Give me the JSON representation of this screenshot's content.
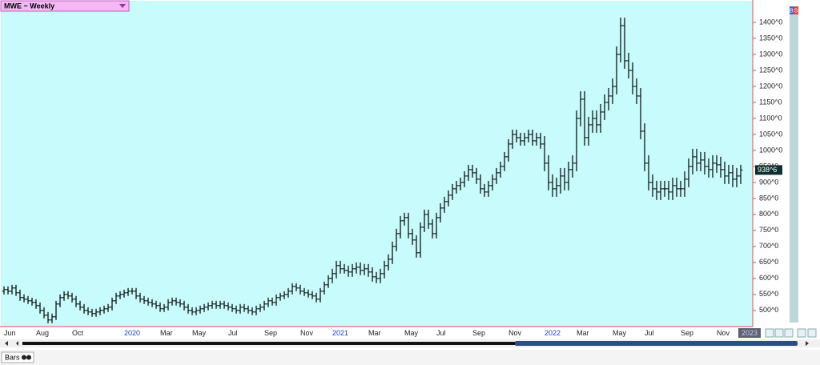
{
  "chart_data": {
    "type": "ohlc",
    "title": "MWE ~ Weekly",
    "color": "#000000",
    "categories": [
      "Jun",
      null,
      null,
      null,
      null,
      null,
      null,
      null,
      "Aug",
      null,
      null,
      null,
      null,
      null,
      null,
      null,
      null,
      "Oct",
      null,
      null,
      null,
      null,
      null,
      null,
      null,
      null,
      null,
      null,
      null,
      null,
      "2020",
      null,
      null,
      null,
      null,
      null,
      null,
      null,
      null,
      "Mar",
      null,
      null,
      null,
      null,
      null,
      null,
      null,
      "May",
      null,
      null,
      null,
      null,
      null,
      null,
      null,
      null,
      "Jul",
      null,
      null,
      null,
      null,
      null,
      null,
      null,
      null,
      "Sep",
      null,
      null,
      null,
      null,
      null,
      null,
      null,
      null,
      "Nov",
      null,
      null,
      null,
      null,
      null,
      null,
      null,
      "2021",
      null,
      null,
      null,
      null,
      null,
      null,
      null,
      null,
      "Mar",
      null,
      null,
      null,
      null,
      null,
      null,
      null,
      null,
      "May",
      null,
      null,
      null,
      null,
      null,
      null,
      null,
      "Jul",
      null,
      null,
      null,
      null,
      null,
      null,
      null,
      null,
      "Sep",
      null,
      null,
      null,
      null,
      null,
      null,
      null,
      null,
      "Nov",
      null,
      null,
      null,
      null,
      null,
      null,
      null,
      null,
      "2022",
      null,
      null,
      null,
      null,
      null,
      null,
      null,
      "Mar",
      null,
      null,
      null,
      null,
      null,
      null,
      null,
      null,
      "May",
      null,
      null,
      null,
      null,
      null,
      null,
      null,
      "Jul",
      null,
      null,
      null,
      null,
      null,
      null,
      null,
      null,
      "Sep",
      null,
      null,
      null,
      null,
      null,
      null,
      null,
      null,
      "Nov",
      null,
      null,
      null,
      null,
      null,
      null
    ],
    "open": [
      560,
      565,
      560,
      570,
      555,
      540,
      535,
      530,
      525,
      515,
      500,
      485,
      470,
      480,
      520,
      540,
      550,
      545,
      535,
      520,
      510,
      500,
      495,
      490,
      495,
      500,
      505,
      510,
      530,
      545,
      550,
      555,
      560,
      560,
      545,
      535,
      530,
      525,
      520,
      515,
      505,
      510,
      525,
      530,
      525,
      520,
      510,
      500,
      495,
      500,
      505,
      510,
      515,
      520,
      515,
      520,
      515,
      510,
      505,
      500,
      510,
      505,
      500,
      495,
      505,
      510,
      520,
      530,
      525,
      540,
      545,
      550,
      560,
      575,
      570,
      560,
      555,
      550,
      545,
      535,
      560,
      580,
      600,
      615,
      640,
      630,
      625,
      620,
      630,
      635,
      625,
      630,
      620,
      605,
      600,
      615,
      640,
      660,
      700,
      740,
      780,
      790,
      740,
      720,
      680,
      760,
      800,
      770,
      740,
      790,
      820,
      840,
      860,
      880,
      890,
      900,
      920,
      940,
      930,
      910,
      880,
      870,
      890,
      910,
      930,
      950,
      980,
      1020,
      1050,
      1040,
      1030,
      1040,
      1050,
      1030,
      1040,
      1020,
      960,
      900,
      880,
      890,
      920,
      900,
      940,
      960,
      1100,
      1160,
      1040,
      1080,
      1100,
      1080,
      1120,
      1150,
      1170,
      1200,
      1300,
      1390,
      1280,
      1250,
      1200,
      1170,
      1060,
      960,
      900,
      880,
      870,
      880,
      880,
      870,
      890,
      880,
      880,
      910,
      950,
      980,
      960,
      970,
      950,
      940,
      960,
      955,
      940,
      920,
      930,
      910,
      920
    ],
    "high": [
      575,
      575,
      580,
      580,
      565,
      550,
      545,
      540,
      535,
      525,
      510,
      495,
      490,
      530,
      550,
      560,
      560,
      555,
      545,
      530,
      520,
      510,
      505,
      505,
      510,
      515,
      520,
      540,
      555,
      560,
      565,
      570,
      570,
      570,
      555,
      545,
      540,
      535,
      530,
      525,
      520,
      535,
      540,
      540,
      535,
      530,
      520,
      510,
      510,
      515,
      520,
      525,
      530,
      530,
      530,
      530,
      525,
      520,
      515,
      520,
      520,
      515,
      510,
      515,
      520,
      530,
      540,
      540,
      550,
      555,
      560,
      570,
      585,
      585,
      580,
      570,
      565,
      560,
      555,
      570,
      590,
      610,
      630,
      655,
      655,
      645,
      640,
      645,
      650,
      650,
      645,
      645,
      635,
      620,
      630,
      655,
      675,
      715,
      755,
      795,
      805,
      805,
      755,
      735,
      775,
      815,
      815,
      785,
      805,
      835,
      855,
      875,
      895,
      905,
      915,
      935,
      955,
      955,
      945,
      925,
      895,
      905,
      925,
      945,
      965,
      995,
      1035,
      1065,
      1065,
      1055,
      1055,
      1065,
      1065,
      1055,
      1055,
      1045,
      985,
      925,
      915,
      945,
      945,
      965,
      985,
      1125,
      1185,
      1185,
      1105,
      1125,
      1125,
      1145,
      1175,
      1195,
      1225,
      1325,
      1415,
      1415,
      1305,
      1275,
      1225,
      1195,
      1085,
      985,
      925,
      905,
      905,
      905,
      905,
      915,
      915,
      905,
      935,
      975,
      1005,
      1005,
      995,
      995,
      975,
      985,
      985,
      980,
      965,
      955,
      955,
      945,
      955
    ],
    "low": [
      550,
      550,
      550,
      545,
      530,
      525,
      520,
      515,
      505,
      490,
      475,
      460,
      460,
      470,
      510,
      530,
      535,
      525,
      510,
      500,
      490,
      485,
      480,
      480,
      485,
      490,
      495,
      500,
      520,
      535,
      540,
      545,
      550,
      535,
      525,
      520,
      515,
      510,
      505,
      495,
      495,
      500,
      515,
      515,
      510,
      500,
      490,
      485,
      485,
      490,
      495,
      500,
      505,
      505,
      505,
      505,
      500,
      495,
      490,
      490,
      495,
      490,
      485,
      485,
      495,
      500,
      510,
      515,
      515,
      530,
      535,
      540,
      550,
      560,
      550,
      545,
      540,
      535,
      525,
      525,
      550,
      570,
      585,
      600,
      615,
      615,
      605,
      605,
      615,
      610,
      610,
      605,
      590,
      585,
      585,
      600,
      625,
      645,
      685,
      725,
      765,
      725,
      705,
      665,
      665,
      745,
      755,
      725,
      725,
      775,
      805,
      825,
      845,
      865,
      875,
      885,
      905,
      915,
      895,
      865,
      855,
      855,
      875,
      895,
      915,
      935,
      965,
      1005,
      1025,
      1015,
      1015,
      1025,
      1015,
      1015,
      1005,
      935,
      875,
      855,
      855,
      865,
      875,
      875,
      915,
      935,
      1075,
      1015,
      1015,
      1055,
      1055,
      1055,
      1095,
      1125,
      1145,
      1175,
      1275,
      1255,
      1225,
      1175,
      1145,
      1035,
      935,
      875,
      855,
      845,
      845,
      855,
      845,
      845,
      855,
      855,
      855,
      885,
      925,
      935,
      935,
      925,
      915,
      915,
      930,
      915,
      895,
      895,
      885,
      885,
      895
    ],
    "close": [
      565,
      560,
      570,
      555,
      540,
      535,
      530,
      525,
      515,
      500,
      485,
      470,
      480,
      520,
      540,
      550,
      545,
      535,
      520,
      510,
      500,
      495,
      490,
      495,
      500,
      505,
      510,
      530,
      545,
      550,
      555,
      560,
      560,
      545,
      535,
      530,
      525,
      520,
      515,
      505,
      510,
      525,
      530,
      525,
      520,
      510,
      500,
      495,
      500,
      505,
      510,
      515,
      520,
      515,
      520,
      515,
      510,
      505,
      500,
      510,
      505,
      500,
      495,
      505,
      510,
      520,
      530,
      525,
      540,
      545,
      550,
      560,
      575,
      570,
      560,
      555,
      550,
      545,
      535,
      560,
      580,
      600,
      615,
      640,
      630,
      625,
      620,
      630,
      635,
      625,
      630,
      620,
      605,
      600,
      615,
      640,
      660,
      700,
      740,
      780,
      790,
      740,
      720,
      680,
      760,
      800,
      770,
      740,
      790,
      820,
      840,
      860,
      880,
      890,
      900,
      920,
      940,
      930,
      910,
      880,
      870,
      890,
      910,
      930,
      950,
      980,
      1020,
      1050,
      1040,
      1030,
      1040,
      1050,
      1030,
      1040,
      1020,
      960,
      900,
      880,
      890,
      920,
      900,
      940,
      960,
      1100,
      1160,
      1040,
      1080,
      1100,
      1080,
      1120,
      1150,
      1170,
      1200,
      1300,
      1390,
      1280,
      1250,
      1200,
      1170,
      1060,
      960,
      900,
      880,
      870,
      880,
      880,
      870,
      890,
      880,
      880,
      910,
      950,
      980,
      960,
      970,
      950,
      940,
      960,
      955,
      940,
      920,
      930,
      910,
      920,
      938.75
    ],
    "ylim": [
      467,
      1450
    ],
    "yticks": [
      {
        "value": 500,
        "label": "500^0"
      },
      {
        "value": 550,
        "label": "550^0"
      },
      {
        "value": 600,
        "label": "600^0"
      },
      {
        "value": 650,
        "label": "650^0"
      },
      {
        "value": 700,
        "label": "700^0"
      },
      {
        "value": 750,
        "label": "750^0"
      },
      {
        "value": 800,
        "label": "800^0"
      },
      {
        "value": 850,
        "label": "850^0"
      },
      {
        "value": 900,
        "label": "900^0"
      },
      {
        "value": 950,
        "label": "950^0"
      },
      {
        "value": 1000,
        "label": "1000^0"
      },
      {
        "value": 1050,
        "label": "1050^0"
      },
      {
        "value": 1100,
        "label": "1100^0"
      },
      {
        "value": 1150,
        "label": "1150^0"
      },
      {
        "value": 1200,
        "label": "1200^0"
      },
      {
        "value": 1250,
        "label": "1250^0"
      },
      {
        "value": 1300,
        "label": "1300^0"
      },
      {
        "value": 1350,
        "label": "1350^0"
      },
      {
        "value": 1400,
        "label": "1400^0"
      }
    ],
    "last_price": {
      "value": 938.75,
      "label": "938^6"
    },
    "x_end_label": "2023"
  },
  "ui": {
    "buy": "B",
    "sell": "S",
    "study": "Bars"
  }
}
